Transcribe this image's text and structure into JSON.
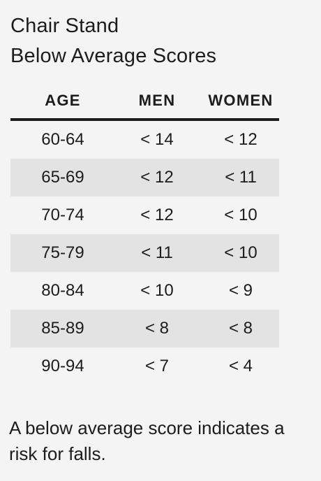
{
  "title": {
    "line1": "Chair Stand",
    "line2": "Below Average Scores"
  },
  "table": {
    "headers": {
      "age": "AGE",
      "men": "MEN",
      "women": "WOMEN"
    },
    "rows": [
      {
        "age": "60-64",
        "men": "< 14",
        "women": "< 12"
      },
      {
        "age": "65-69",
        "men": "< 12",
        "women": "< 11"
      },
      {
        "age": "70-74",
        "men": "< 12",
        "women": "< 10"
      },
      {
        "age": "75-79",
        "men": "< 11",
        "women": "< 10"
      },
      {
        "age": "80-84",
        "men": "< 10",
        "women": "< 9"
      },
      {
        "age": "85-89",
        "men": "< 8",
        "women": "< 8"
      },
      {
        "age": "90-94",
        "men": "< 7",
        "women": "< 4"
      }
    ]
  },
  "note": "A below average score indicates a risk for falls."
}
